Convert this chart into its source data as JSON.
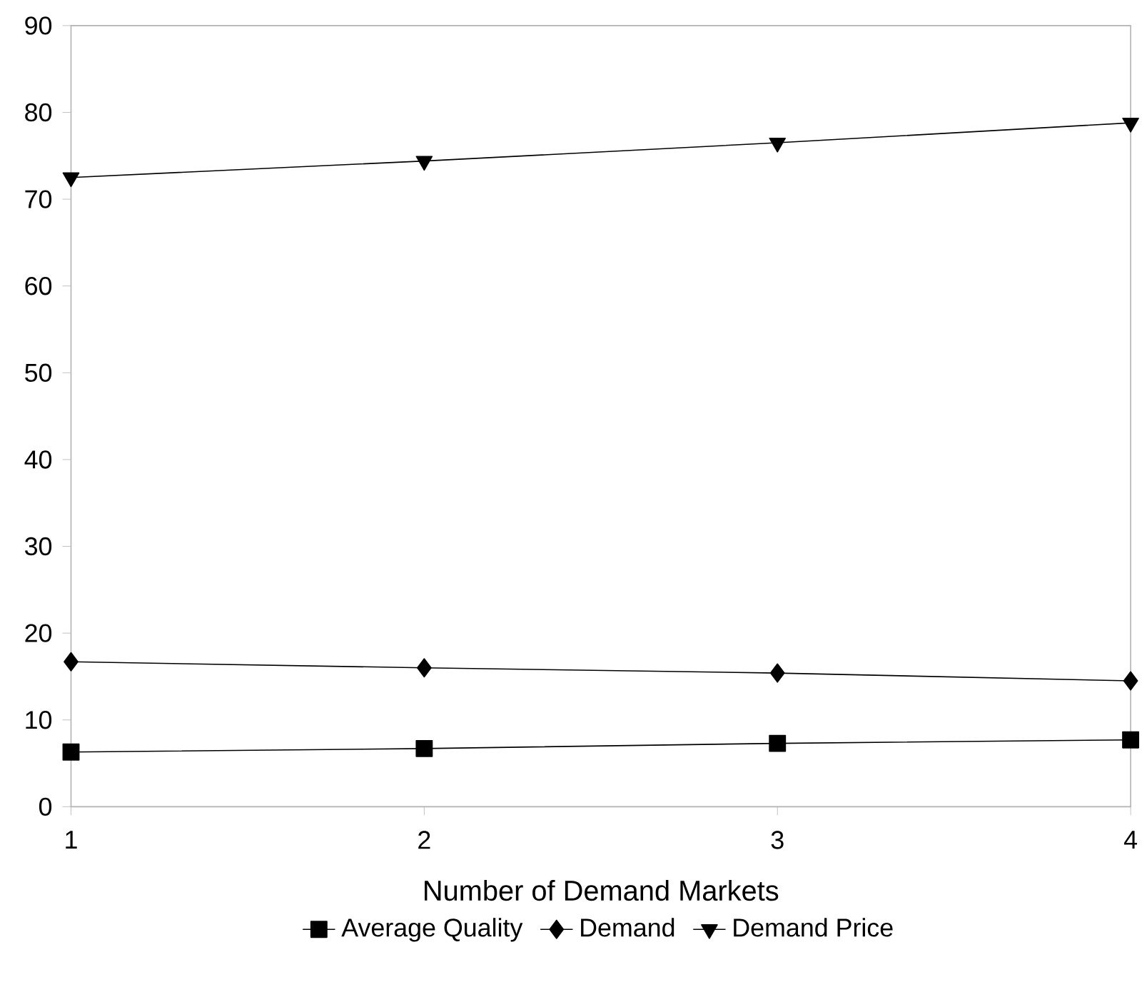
{
  "chart_data": {
    "type": "line",
    "xlabel": "Number of Demand Markets",
    "x": [
      1,
      2,
      3,
      4
    ],
    "xlim": [
      1,
      4
    ],
    "xticks": [
      1,
      2,
      3,
      4
    ],
    "ylim": [
      0,
      90
    ],
    "yticks": [
      0,
      10,
      20,
      30,
      40,
      50,
      60,
      70,
      80,
      90
    ],
    "grid": false,
    "legend": "bottom",
    "series": [
      {
        "name": "Average Quality",
        "color": "#000000",
        "marker": "square",
        "values": [
          6.3,
          6.7,
          7.3,
          7.7
        ]
      },
      {
        "name": "Demand",
        "color": "#000000",
        "marker": "diamond",
        "values": [
          16.7,
          16.0,
          15.4,
          14.5
        ]
      },
      {
        "name": "Demand Price",
        "color": "#000000",
        "marker": "triangle",
        "values": [
          72.5,
          74.4,
          76.5,
          78.8
        ]
      }
    ]
  }
}
